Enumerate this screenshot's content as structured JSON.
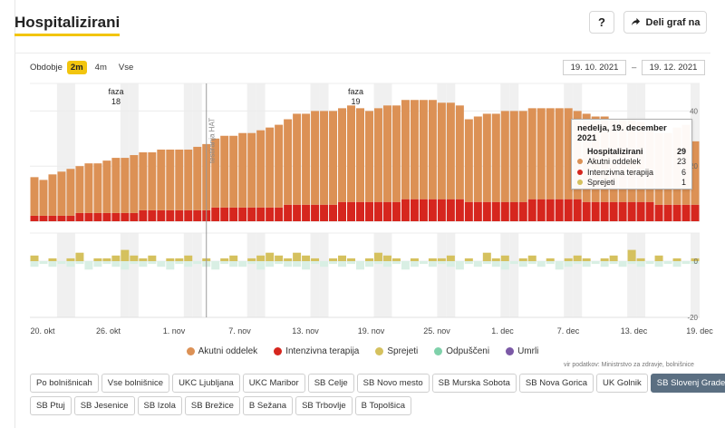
{
  "header": {
    "title": "Hospitalizirani",
    "help_label": "?",
    "share_label": "Deli graf na"
  },
  "period": {
    "label": "Obdobje",
    "options": [
      "2m",
      "4m",
      "Vse"
    ],
    "selected": "2m",
    "date_from": "19. 10. 2021",
    "date_to": "19. 12. 2021",
    "dash": "–"
  },
  "tooltip": {
    "date": "nedelja, 19. december 2021",
    "rows": [
      {
        "label": "Hospitalizirani",
        "value": "29",
        "total": true,
        "color": ""
      },
      {
        "label": "Akutni oddelek",
        "value": "23",
        "total": false,
        "color": "#dc9155"
      },
      {
        "label": "Intenzivna terapija",
        "value": "6",
        "total": false,
        "color": "#d6261e"
      },
      {
        "label": "Sprejeti",
        "value": "1",
        "total": false,
        "color": "#d5c15e"
      }
    ]
  },
  "legend": [
    {
      "label": "Akutni oddelek",
      "color": "#dc9155"
    },
    {
      "label": "Intenzivna terapija",
      "color": "#d6261e"
    },
    {
      "label": "Sprejeti",
      "color": "#d5c15e"
    },
    {
      "label": "Odpuščeni",
      "color": "#7fd1aa"
    },
    {
      "label": "Umrli",
      "color": "#7b59a6"
    }
  ],
  "source": "vir podatkov: Ministrstvo za zdravje, bolnišnice",
  "hospitals": {
    "row1": [
      "Po bolnišnicah",
      "Vse bolnišnice",
      "UKC Ljubljana",
      "UKC Maribor",
      "SB Celje",
      "SB Novo mesto",
      "SB Murska Sobota",
      "SB Nova Gorica",
      "UK Golnik",
      "SB Slovenj Gradec"
    ],
    "row2": [
      "SB Ptuj",
      "SB Jesenice",
      "SB Izola",
      "SB Brežice",
      "B Sežana",
      "SB Trbovlje",
      "B Topolšica"
    ],
    "selected": "SB Slovenj Gradec"
  },
  "chart_data": {
    "type": "bar",
    "x_tick_labels": [
      "20. okt",
      "26. okt",
      "1. nov",
      "7. nov",
      "13. nov",
      "19. nov",
      "25. nov",
      "1. dec",
      "7. dec",
      "13. dec",
      "19. dec"
    ],
    "annotations": [
      {
        "text": "faza",
        "sub": "18",
        "date": "22. okt"
      },
      {
        "text": "faza",
        "sub": "19",
        "date": "24. nov"
      },
      {
        "text": "testiranja HAT",
        "date": "8. nov"
      }
    ],
    "top_panel": {
      "y_tick_labels": [
        "40",
        "20"
      ],
      "ylim": [
        0,
        50
      ],
      "series": [
        {
          "name": "Akutni oddelek",
          "color": "#dc9155",
          "values": [
            14,
            13,
            15,
            16,
            17,
            17,
            18,
            18,
            19,
            20,
            20,
            21,
            21,
            21,
            22,
            22,
            22,
            22,
            23,
            24,
            25,
            26,
            26,
            27,
            27,
            28,
            29,
            30,
            31,
            33,
            33,
            34,
            34,
            34,
            34,
            35,
            34,
            33,
            34,
            35,
            35,
            36,
            36,
            36,
            36,
            35,
            35,
            34,
            30,
            31,
            32,
            32,
            33,
            33,
            33,
            33,
            33,
            33,
            33,
            33,
            32,
            32,
            31,
            31,
            30,
            30,
            30,
            29,
            27,
            26,
            26,
            28,
            29,
            23
          ]
        },
        {
          "name": "Intenzivna terapija",
          "color": "#d6261e",
          "values": [
            2,
            2,
            2,
            2,
            2,
            3,
            3,
            3,
            3,
            3,
            3,
            3,
            4,
            4,
            4,
            4,
            4,
            4,
            4,
            4,
            5,
            5,
            5,
            5,
            5,
            5,
            5,
            5,
            6,
            6,
            6,
            6,
            6,
            6,
            7,
            7,
            7,
            7,
            7,
            7,
            7,
            8,
            8,
            8,
            8,
            8,
            8,
            8,
            7,
            7,
            7,
            7,
            7,
            7,
            7,
            8,
            8,
            8,
            8,
            8,
            8,
            7,
            7,
            7,
            7,
            7,
            7,
            7,
            7,
            6,
            6,
            6,
            6,
            6
          ]
        }
      ]
    },
    "bottom_panel": {
      "y_tick_labels": [
        "0",
        "-20"
      ],
      "ylim": [
        -20,
        10
      ],
      "series": [
        {
          "name": "Sprejeti",
          "color": "#d5c15e",
          "values": [
            2,
            0,
            1,
            0,
            1,
            3,
            0,
            1,
            1,
            2,
            4,
            2,
            1,
            2,
            0,
            1,
            1,
            2,
            0,
            1,
            0,
            1,
            2,
            0,
            1,
            2,
            3,
            2,
            1,
            3,
            2,
            1,
            0,
            1,
            2,
            1,
            0,
            1,
            3,
            2,
            1,
            0,
            1,
            0,
            1,
            1,
            2,
            0,
            1,
            0,
            3,
            1,
            2,
            0,
            1,
            2,
            0,
            1,
            0,
            1,
            2,
            1,
            0,
            1,
            2,
            0,
            4,
            1,
            0,
            2,
            0,
            1,
            0,
            1
          ]
        },
        {
          "name": "Odpuščeni",
          "color": "#7fd1aa",
          "values": [
            -2,
            -1,
            -2,
            -1,
            -2,
            -1,
            -3,
            -2,
            -1,
            -2,
            -3,
            -1,
            -2,
            -1,
            -2,
            -3,
            -1,
            -2,
            -1,
            -2,
            -3,
            -1,
            -2,
            -2,
            -1,
            -3,
            -2,
            -1,
            -2,
            -2,
            -3,
            -1,
            -2,
            -1,
            -2,
            -1,
            -3,
            -2,
            -1,
            -2,
            -1,
            -3,
            -2,
            -1,
            -2,
            -1,
            -2,
            -3,
            -1,
            -2,
            -1,
            -2,
            -3,
            -1,
            -2,
            -1,
            -2,
            -1,
            -3,
            -2,
            -1,
            -2,
            -1,
            -2,
            -1,
            -2,
            -1,
            -2,
            -1,
            -2,
            -1,
            -2,
            -1,
            -1
          ]
        },
        {
          "name": "Umrli",
          "color": "#7b59a6",
          "values": [
            0,
            0,
            0,
            0,
            0,
            0,
            0,
            0,
            0,
            0,
            0,
            0,
            0,
            0,
            0,
            0,
            0,
            0,
            0,
            0,
            0,
            0,
            0,
            0,
            0,
            0,
            0,
            0,
            0,
            0,
            0,
            0,
            0,
            0,
            0,
            0,
            0,
            0,
            0,
            0,
            0,
            0,
            0,
            0,
            0,
            0,
            0,
            0,
            0,
            0,
            0,
            0,
            0,
            0,
            0,
            0,
            0,
            0,
            0,
            0,
            0,
            0,
            0,
            0,
            0,
            0,
            0,
            0,
            0,
            0,
            0,
            0,
            0,
            0
          ]
        }
      ]
    },
    "grid": true,
    "legend_position": "bottom"
  }
}
